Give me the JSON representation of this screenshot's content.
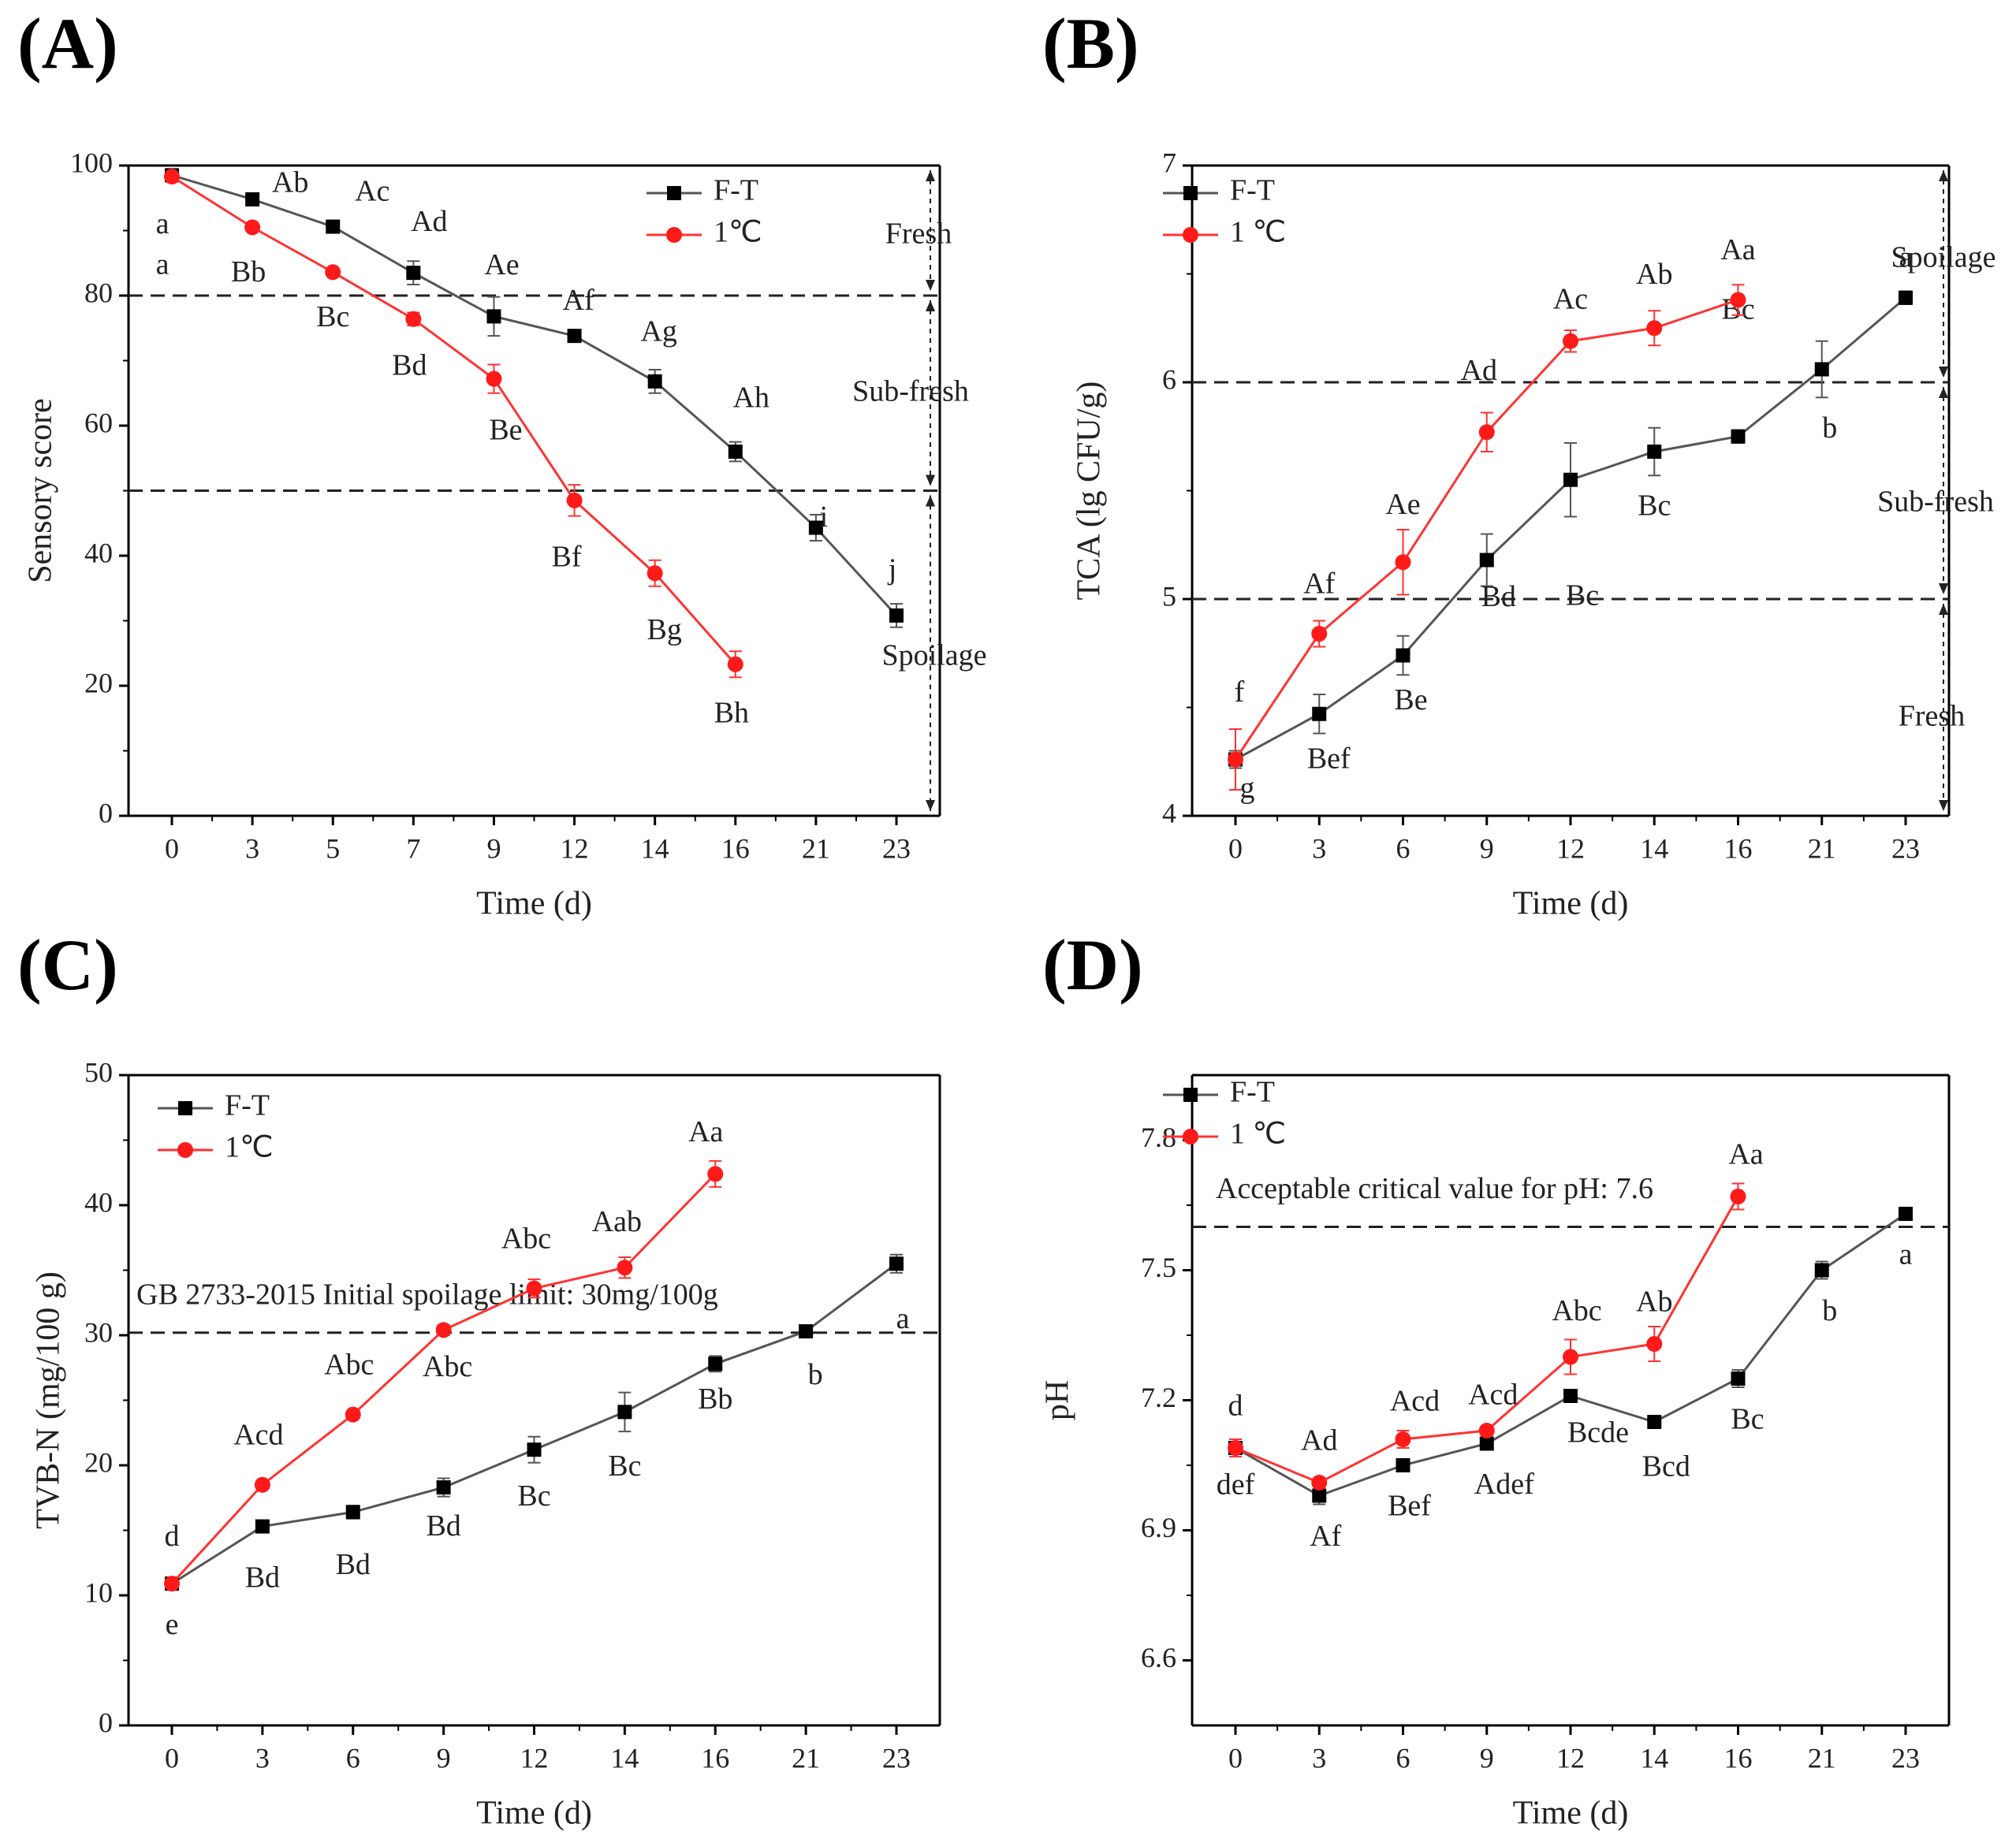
{
  "chart_data": [
    {
      "panel_label": "(A)",
      "type": "line",
      "xlabel": "Time (d)",
      "ylabel": "Sensory score",
      "ylim": [
        0,
        100
      ],
      "yticks": [
        0,
        20,
        40,
        60,
        80,
        100
      ],
      "xticks": [
        "0",
        "3",
        "5",
        "7",
        "9",
        "12",
        "14",
        "16",
        "21",
        "23"
      ],
      "legend_position": "top-right",
      "series": [
        {
          "name": "F-T",
          "color": "#000000",
          "line_color": "#555555",
          "marker": "square",
          "values": [
            98.5,
            94.8,
            90.6,
            83.5,
            76.8,
            73.8,
            66.8,
            56.0,
            44.3,
            30.8
          ],
          "errors": [
            0.6,
            0.6,
            0.6,
            1.8,
            3.0,
            0.8,
            1.8,
            1.5,
            2.0,
            1.8
          ],
          "labels": [
            "a",
            "Ab",
            "Ac",
            "Ad",
            "Ae",
            "Af",
            "Ag",
            "Ah",
            "i",
            "j"
          ]
        },
        {
          "name": "1℃",
          "color": "#ff1a1a",
          "line_color": "#ff3333",
          "marker": "circle",
          "values": [
            98.3,
            90.5,
            83.6,
            76.4,
            67.2,
            48.5,
            37.3,
            23.3
          ],
          "errors": [
            0.6,
            0.6,
            0.6,
            1.0,
            2.2,
            2.4,
            2.0,
            2.0
          ],
          "labels": [
            "a",
            "Bb",
            "Bc",
            "Bd",
            "Be",
            "Bf",
            "Bg",
            "Bh"
          ]
        }
      ],
      "thresholds": [
        80,
        50
      ],
      "zones": [
        "Fresh",
        "Sub-fresh",
        "Spoilage"
      ]
    },
    {
      "panel_label": "(B)",
      "type": "line",
      "xlabel": "Time (d)",
      "ylabel": "TCA (lg CFU/g)",
      "ylim": [
        4,
        7
      ],
      "yticks": [
        4,
        5,
        6,
        7
      ],
      "xticks": [
        "0",
        "3",
        "6",
        "9",
        "12",
        "14",
        "16",
        "21",
        "23"
      ],
      "legend_position": "top-left",
      "series": [
        {
          "name": "F-T",
          "color": "#000000",
          "line_color": "#555555",
          "marker": "square",
          "values": [
            4.26,
            4.47,
            4.74,
            5.18,
            5.55,
            5.68,
            5.75,
            6.06,
            6.39
          ],
          "errors": [
            0.04,
            0.09,
            0.09,
            0.12,
            0.17,
            0.11,
            0.03,
            0.13,
            0.03
          ],
          "labels": [
            "g",
            "Bef",
            "Be",
            "Bd",
            "Bc",
            "Bc",
            "Bc",
            "b",
            "a"
          ]
        },
        {
          "name": "1 ℃",
          "color": "#ff1a1a",
          "line_color": "#ff3333",
          "marker": "circle",
          "values": [
            4.26,
            4.84,
            5.17,
            5.77,
            6.19,
            6.25,
            6.38
          ],
          "errors": [
            0.14,
            0.06,
            0.15,
            0.09,
            0.05,
            0.08,
            0.07
          ],
          "labels": [
            "f",
            "Af",
            "Ae",
            "Ad",
            "Ac",
            "Ab",
            "Aa"
          ]
        }
      ],
      "thresholds": [
        6,
        5
      ],
      "zones": [
        "Spoilage",
        "Sub-fresh",
        "Fresh"
      ]
    },
    {
      "panel_label": "(C)",
      "type": "line",
      "xlabel": "Time (d)",
      "ylabel": "TVB-N (mg/100 g)",
      "ylim": [
        0,
        50
      ],
      "yticks": [
        0,
        10,
        20,
        30,
        40,
        50
      ],
      "xticks": [
        "0",
        "3",
        "6",
        "9",
        "12",
        "14",
        "16",
        "21",
        "23"
      ],
      "legend_position": "top-left",
      "series": [
        {
          "name": "F-T",
          "color": "#000000",
          "line_color": "#555555",
          "marker": "square",
          "values": [
            10.9,
            15.3,
            16.4,
            18.3,
            21.2,
            24.1,
            27.8,
            30.3,
            35.5
          ],
          "errors": [
            0.3,
            0.3,
            0.5,
            0.7,
            1.0,
            1.5,
            0.6,
            0.4,
            0.7
          ],
          "labels": [
            "e",
            "Bd",
            "Bd",
            "Bd",
            "Bc",
            "Bc",
            "Bb",
            "b",
            "a"
          ]
        },
        {
          "name": "1℃",
          "color": "#ff1a1a",
          "line_color": "#ff3333",
          "marker": "circle",
          "values": [
            10.9,
            18.5,
            23.9,
            30.4,
            33.6,
            35.2,
            42.4
          ],
          "errors": [
            0.3,
            0.3,
            0.3,
            0.4,
            0.7,
            0.8,
            1.0
          ],
          "labels": [
            "d",
            "Acd",
            "Abc",
            "Abc",
            "Abc",
            "Aab",
            "Aa"
          ]
        }
      ],
      "thresholds": [
        30.2
      ],
      "threshold_label": "GB 2733-2015 Initial spoilage limit: 30mg/100g"
    },
    {
      "panel_label": "(D)",
      "type": "line",
      "xlabel": "Time (d)",
      "ylabel": "pH",
      "ylim": [
        6.45,
        7.95
      ],
      "yticks": [
        6.6,
        6.9,
        7.2,
        7.5,
        7.8
      ],
      "xticks": [
        "0",
        "3",
        "6",
        "9",
        "12",
        "14",
        "16",
        "21",
        "23"
      ],
      "legend_position": "top-left",
      "series": [
        {
          "name": "F-T",
          "color": "#000000",
          "line_color": "#555555",
          "marker": "square",
          "values": [
            7.09,
            6.98,
            7.05,
            7.1,
            7.21,
            7.15,
            7.25,
            7.5,
            7.63
          ],
          "errors": [
            0.02,
            0.02,
            0.01,
            0.01,
            0.01,
            0.01,
            0.02,
            0.02,
            0.01
          ],
          "labels": [
            "def",
            "Af",
            "Bef",
            "Adef",
            "Bcde",
            "Bcd",
            "Bc",
            "b",
            "a"
          ]
        },
        {
          "name": "1 ℃",
          "color": "#ff1a1a",
          "line_color": "#ff3333",
          "marker": "circle",
          "values": [
            7.09,
            7.01,
            7.11,
            7.13,
            7.3,
            7.33,
            7.67
          ],
          "errors": [
            0.02,
            0.01,
            0.02,
            0.01,
            0.04,
            0.04,
            0.03
          ],
          "labels": [
            "d",
            "Ad",
            "Acd",
            "Acd",
            "Abc",
            "Ab",
            "Aa"
          ]
        }
      ],
      "thresholds": [
        7.6
      ],
      "threshold_label": "Acceptable critical value for pH: 7.6"
    }
  ]
}
